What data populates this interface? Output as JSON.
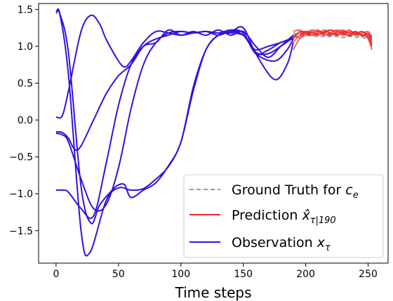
{
  "chart_data": {
    "type": "line",
    "title": "",
    "xlabel": "Time steps",
    "ylabel": "",
    "xlim": [
      -14,
      266
    ],
    "ylim": [
      -1.94,
      1.58
    ],
    "xticks": [
      0,
      50,
      100,
      150,
      200,
      250
    ],
    "yticks": [
      -1.5,
      -1.0,
      -0.5,
      0.0,
      0.5,
      1.0,
      1.5
    ],
    "ytick_labels": [
      "−1.5",
      "−1.0",
      "−0.5",
      "0.0",
      "0.5",
      "1.0",
      "1.5"
    ],
    "grid": false,
    "legend_position": "lower-right",
    "legend": [
      {
        "key": "gt",
        "label": "Ground Truth for ",
        "math": "c",
        "sub": "e",
        "style": "dashed",
        "color": "#999999"
      },
      {
        "key": "pred",
        "label": "Prediction ",
        "math": "x̂",
        "sub": "τ|190",
        "style": "solid",
        "color": "#ee2222"
      },
      {
        "key": "obs",
        "label": "Observation ",
        "math": "x",
        "sub": "τ",
        "style": "solid",
        "color": "#3311dd"
      }
    ],
    "observation_series": [
      {
        "x": [
          0,
          3,
          10,
          20,
          27,
          40,
          50,
          60,
          70,
          80,
          90,
          100,
          110,
          120,
          130,
          140,
          150,
          155,
          160,
          170,
          180,
          190
        ],
        "y": [
          1.45,
          1.44,
          0.6,
          -1.5,
          -1.8,
          -1.1,
          -0.92,
          -0.95,
          -0.93,
          -0.8,
          -0.63,
          -0.3,
          0.4,
          0.95,
          1.15,
          1.18,
          1.15,
          1.05,
          0.95,
          1.0,
          1.05,
          1.12
        ]
      },
      {
        "x": [
          0,
          3,
          10,
          20,
          28,
          35,
          45,
          50,
          55,
          60,
          70,
          80,
          90,
          100,
          110,
          120,
          130,
          140,
          150,
          160,
          170,
          180,
          190
        ],
        "y": [
          1.45,
          1.44,
          0.9,
          -0.9,
          -1.4,
          -1.15,
          -0.95,
          -0.88,
          -0.88,
          -1.05,
          -0.95,
          -0.85,
          -0.62,
          -0.3,
          0.45,
          0.95,
          1.15,
          1.2,
          1.18,
          0.9,
          0.95,
          1.05,
          1.1
        ]
      },
      {
        "x": [
          0,
          5,
          10,
          20,
          28,
          35,
          40,
          50,
          55,
          60,
          70,
          80,
          90,
          100,
          110,
          120,
          130,
          140,
          150,
          160,
          175,
          185,
          190
        ],
        "y": [
          0.04,
          0.06,
          0.4,
          1.2,
          1.42,
          1.3,
          1.1,
          0.8,
          0.72,
          0.8,
          1.05,
          1.2,
          1.18,
          1.15,
          1.18,
          1.2,
          1.18,
          1.2,
          1.25,
          0.9,
          0.55,
          0.75,
          1.05
        ]
      },
      {
        "x": [
          0,
          5,
          10,
          15,
          20,
          30,
          40,
          50,
          60,
          70,
          80,
          90,
          100,
          110,
          120,
          130,
          140,
          150,
          160,
          175,
          185,
          190
        ],
        "y": [
          -0.16,
          -0.17,
          -0.25,
          -0.4,
          -0.35,
          0.0,
          0.35,
          0.6,
          0.75,
          1.0,
          1.1,
          1.15,
          1.2,
          1.18,
          1.2,
          1.18,
          1.22,
          1.18,
          0.9,
          0.8,
          0.95,
          1.1
        ]
      },
      {
        "x": [
          0,
          5,
          10,
          20,
          30,
          40,
          50,
          60,
          70,
          80,
          90,
          100,
          110,
          120,
          130,
          140,
          150,
          160,
          170,
          180,
          190
        ],
        "y": [
          -0.18,
          -0.2,
          -0.3,
          -0.8,
          -1.2,
          -1.15,
          -0.65,
          0.15,
          0.75,
          1.05,
          1.18,
          1.2,
          1.18,
          1.2,
          1.15,
          1.2,
          1.15,
          0.92,
          0.9,
          1.0,
          1.12
        ]
      },
      {
        "x": [
          0,
          5,
          10,
          20,
          30,
          40,
          50,
          60,
          70,
          80,
          90,
          100,
          110,
          120,
          130,
          140,
          150,
          160,
          170,
          180,
          190
        ],
        "y": [
          -0.95,
          -0.95,
          -0.98,
          -1.2,
          -1.3,
          -0.6,
          0.2,
          0.75,
          1.0,
          1.05,
          1.22,
          1.15,
          1.2,
          1.15,
          1.22,
          1.15,
          1.2,
          1.0,
          0.85,
          1.0,
          1.15
        ]
      }
    ],
    "prediction_series": [
      {
        "x": [
          190,
          195,
          200,
          205,
          210,
          215,
          220,
          225,
          230,
          235,
          240,
          245,
          250,
          253
        ],
        "y": [
          1.12,
          1.18,
          1.2,
          1.15,
          1.18,
          1.22,
          1.16,
          1.18,
          1.2,
          1.15,
          1.18,
          1.16,
          1.1,
          0.95
        ]
      },
      {
        "x": [
          190,
          195,
          200,
          205,
          210,
          215,
          220,
          225,
          230,
          235,
          240,
          245,
          250,
          253
        ],
        "y": [
          1.05,
          1.15,
          1.18,
          1.22,
          1.2,
          1.18,
          1.22,
          1.2,
          1.16,
          1.2,
          1.18,
          1.2,
          1.15,
          1.02
        ]
      },
      {
        "x": [
          190,
          195,
          200,
          205,
          210,
          215,
          220,
          225,
          230,
          235,
          240,
          245,
          250,
          253
        ],
        "y": [
          1.1,
          1.2,
          1.16,
          1.18,
          1.22,
          1.15,
          1.18,
          1.22,
          1.18,
          1.14,
          1.2,
          1.15,
          1.18,
          1.08
        ]
      },
      {
        "x": [
          190,
          195,
          200,
          205,
          210,
          215,
          220,
          225,
          230,
          235,
          240,
          245,
          250,
          253
        ],
        "y": [
          0.95,
          1.1,
          1.15,
          1.2,
          1.16,
          1.2,
          1.18,
          1.15,
          1.2,
          1.18,
          1.15,
          1.2,
          1.12,
          1.0
        ]
      },
      {
        "x": [
          190,
          195,
          200,
          205,
          210,
          215,
          220,
          225,
          230,
          235,
          240,
          245,
          250,
          253
        ],
        "y": [
          1.15,
          1.12,
          1.2,
          1.18,
          1.15,
          1.2,
          1.22,
          1.16,
          1.18,
          1.22,
          1.16,
          1.18,
          1.2,
          1.12
        ]
      },
      {
        "x": [
          190,
          195,
          200,
          205,
          210,
          215,
          220,
          225,
          230,
          235,
          240,
          245,
          250,
          253
        ],
        "y": [
          1.2,
          1.22,
          1.18,
          1.15,
          1.2,
          1.18,
          1.15,
          1.2,
          1.22,
          1.18,
          1.2,
          1.14,
          1.16,
          1.05
        ]
      }
    ],
    "ground_truth_series": [
      {
        "x": [
          190,
          200,
          210,
          220,
          230,
          240,
          250,
          253
        ],
        "y": [
          1.15,
          1.18,
          1.16,
          1.18,
          1.15,
          1.17,
          1.14,
          1.15
        ]
      },
      {
        "x": [
          190,
          200,
          210,
          220,
          230,
          240,
          250,
          253
        ],
        "y": [
          1.18,
          1.14,
          1.17,
          1.13,
          1.16,
          1.12,
          1.16,
          1.12
        ]
      },
      {
        "x": [
          190,
          200,
          210,
          220,
          230,
          240,
          250,
          253
        ],
        "y": [
          1.12,
          1.16,
          1.13,
          1.15,
          1.12,
          1.15,
          1.1,
          1.13
        ]
      }
    ]
  }
}
